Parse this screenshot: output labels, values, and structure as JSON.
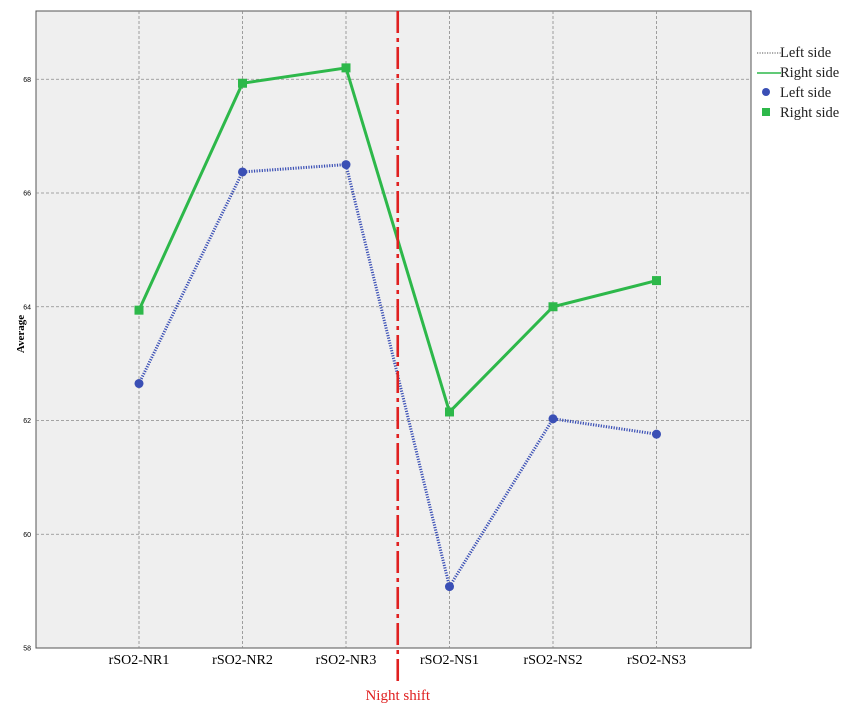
{
  "chart_data": {
    "type": "line",
    "title": "",
    "xlabel": "",
    "ylabel": "Average",
    "categories": [
      "rSO2-NR1",
      "rSO2-NR2",
      "rSO2-NR3",
      "rSO2-NS1",
      "rSO2-NS2",
      "rSO2-NS3"
    ],
    "ylim": [
      58,
      69.2
    ],
    "yticks": [
      58,
      60,
      62,
      64,
      66,
      68
    ],
    "grid": true,
    "legend_position": "right",
    "series": [
      {
        "name": "Left side",
        "values": [
          62.65,
          66.37,
          66.5,
          59.08,
          62.03,
          61.76
        ],
        "color": "#3a4fb5",
        "line_style": "dotted",
        "marker": "circle"
      },
      {
        "name": "Right side",
        "values": [
          63.94,
          67.93,
          68.2,
          62.15,
          64.0,
          64.46
        ],
        "color": "#2db84a",
        "line_style": "solid",
        "marker": "square"
      }
    ],
    "annotation": {
      "label": "Night shift",
      "position_between": [
        "rSO2-NR3",
        "rSO2-NS1"
      ],
      "color": "#e02020",
      "line_style": "dash-dot"
    },
    "legend": {
      "line_entries": [
        {
          "label": "Left side",
          "style": "dotted"
        },
        {
          "label": "Right side",
          "style": "solid",
          "color": "#2db84a"
        }
      ],
      "marker_entries": [
        {
          "label": "Left side",
          "marker": "circle",
          "color": "#3a4fb5"
        },
        {
          "label": "Right side",
          "marker": "square",
          "color": "#2db84a"
        }
      ]
    }
  }
}
